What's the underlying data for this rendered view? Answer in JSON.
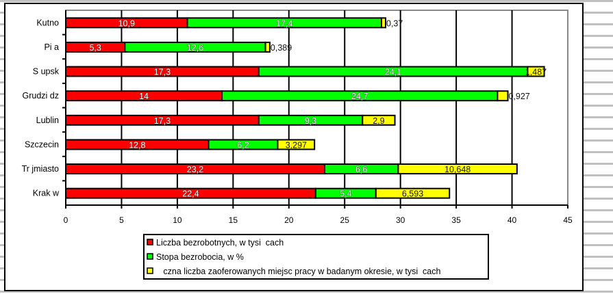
{
  "chart_data": {
    "type": "bar",
    "orientation": "horizontal",
    "stacked": true,
    "title": "",
    "xlabel": "",
    "ylabel": "",
    "xlim": [
      0,
      45
    ],
    "xticks": [
      "0",
      "5",
      "10",
      "15",
      "20",
      "25",
      "30",
      "35",
      "40",
      "45"
    ],
    "grid": true,
    "legend_position": "bottom",
    "categories": [
      "Kutno",
      "Pi a",
      "S upsk",
      "Grudzi dz",
      "Lublin",
      "Szczecin",
      "Tr jmiasto",
      "Krak w"
    ],
    "series": [
      {
        "name": "Liczba bezrobotnych, w tysi  cach",
        "color": "#ff0000",
        "values": [
          10.9,
          5.3,
          17.3,
          14,
          17.3,
          12.8,
          23.2,
          22.4
        ],
        "labels": [
          "10,9",
          "5,3",
          "17,3",
          "14",
          "17,3",
          "12,8",
          "23,2",
          "22,4"
        ]
      },
      {
        "name": "Stopa bezrobocia, w %",
        "color": "#00ff00",
        "values": [
          17.4,
          12.6,
          24.1,
          24.7,
          9.3,
          6.2,
          6.6,
          5.4
        ],
        "labels": [
          "17,4",
          "12,6",
          "24,1",
          "24,7",
          "9,3",
          "6,2",
          "6,6",
          "5,4"
        ]
      },
      {
        "name": "   czna liczba zaoferowanych miejsc pracy w badanym okresie, w tysi  cach",
        "color": "#ffff00",
        "values": [
          0.37,
          0.389,
          1.487,
          0.927,
          2.9,
          3.297,
          10.648,
          6.593
        ],
        "labels": [
          "0,37",
          "0,389",
          "1,487",
          "0,927",
          "2,9",
          "3,297",
          "10,648",
          "6,593"
        ]
      }
    ]
  }
}
